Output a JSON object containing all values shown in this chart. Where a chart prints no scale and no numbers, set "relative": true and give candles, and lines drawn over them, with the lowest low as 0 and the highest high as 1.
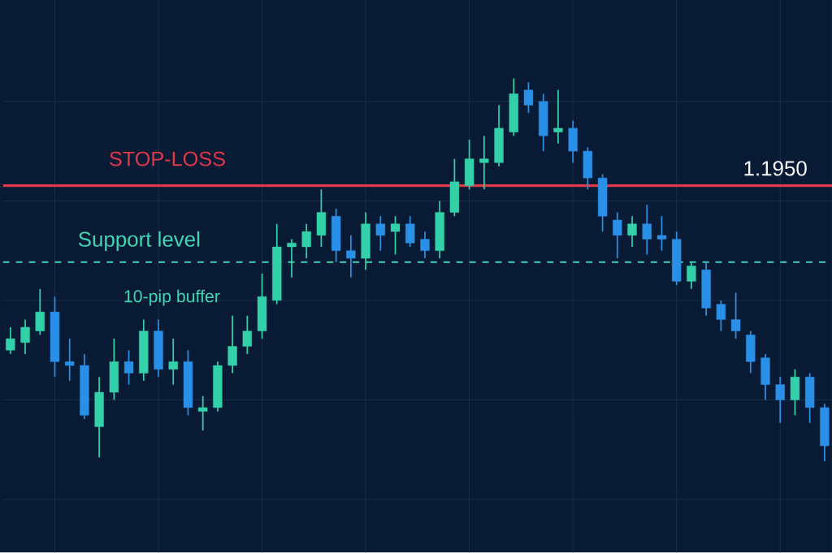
{
  "chart_data": {
    "type": "candlestick",
    "relative": true,
    "grid": true,
    "categories": [
      null,
      null,
      null,
      null,
      null,
      null,
      null,
      null,
      null,
      null,
      null,
      null,
      null,
      null,
      null,
      null,
      null,
      null,
      null,
      null,
      null,
      null,
      null,
      null,
      null,
      null,
      null,
      null,
      null,
      null,
      null,
      null,
      null,
      null,
      null,
      null,
      null,
      null,
      null,
      null,
      null,
      null,
      null,
      null,
      null,
      null,
      null,
      null,
      null,
      null,
      null,
      null,
      null,
      null,
      null,
      null
    ],
    "ohlc": [
      [
        0.29,
        0.35,
        0.28,
        0.32
      ],
      [
        0.31,
        0.37,
        0.28,
        0.35
      ],
      [
        0.34,
        0.45,
        0.33,
        0.39
      ],
      [
        0.39,
        0.43,
        0.22,
        0.26
      ],
      [
        0.26,
        0.32,
        0.21,
        0.25
      ],
      [
        0.25,
        0.28,
        0.11,
        0.12
      ],
      [
        0.09,
        0.22,
        0.01,
        0.18
      ],
      [
        0.18,
        0.32,
        0.16,
        0.26
      ],
      [
        0.26,
        0.29,
        0.2,
        0.23
      ],
      [
        0.23,
        0.37,
        0.21,
        0.34
      ],
      [
        0.34,
        0.37,
        0.22,
        0.24
      ],
      [
        0.24,
        0.32,
        0.2,
        0.26
      ],
      [
        0.26,
        0.29,
        0.12,
        0.14
      ],
      [
        0.13,
        0.17,
        0.08,
        0.14
      ],
      [
        0.14,
        0.26,
        0.13,
        0.25
      ],
      [
        0.25,
        0.38,
        0.23,
        0.3
      ],
      [
        0.3,
        0.38,
        0.28,
        0.34
      ],
      [
        0.34,
        0.49,
        0.32,
        0.43
      ],
      [
        0.42,
        0.62,
        0.41,
        0.56
      ],
      [
        0.56,
        0.58,
        0.48,
        0.57
      ],
      [
        0.56,
        0.62,
        0.53,
        0.6
      ],
      [
        0.59,
        0.71,
        0.56,
        0.65
      ],
      [
        0.64,
        0.66,
        0.52,
        0.55
      ],
      [
        0.55,
        0.59,
        0.48,
        0.53
      ],
      [
        0.53,
        0.65,
        0.5,
        0.62
      ],
      [
        0.62,
        0.64,
        0.55,
        0.59
      ],
      [
        0.6,
        0.64,
        0.54,
        0.62
      ],
      [
        0.62,
        0.64,
        0.56,
        0.57
      ],
      [
        0.58,
        0.6,
        0.53,
        0.55
      ],
      [
        0.55,
        0.68,
        0.53,
        0.65
      ],
      [
        0.65,
        0.79,
        0.64,
        0.73
      ],
      [
        0.72,
        0.84,
        0.71,
        0.79
      ],
      [
        0.78,
        0.85,
        0.71,
        0.79
      ],
      [
        0.78,
        0.93,
        0.77,
        0.87
      ],
      [
        0.86,
        1,
        0.85,
        0.96
      ],
      [
        0.97,
        0.99,
        0.91,
        0.93
      ],
      [
        0.94,
        0.96,
        0.81,
        0.85
      ],
      [
        0.86,
        0.97,
        0.83,
        0.87
      ],
      [
        0.87,
        0.89,
        0.78,
        0.81
      ],
      [
        0.81,
        0.82,
        0.71,
        0.74
      ],
      [
        0.74,
        0.75,
        0.6,
        0.64
      ],
      [
        0.63,
        0.65,
        0.53,
        0.59
      ],
      [
        0.59,
        0.64,
        0.56,
        0.62
      ],
      [
        0.62,
        0.67,
        0.54,
        0.58
      ],
      [
        0.59,
        0.64,
        0.55,
        0.58
      ],
      [
        0.58,
        0.6,
        0.46,
        0.47
      ],
      [
        0.47,
        0.52,
        0.45,
        0.51
      ],
      [
        0.5,
        0.52,
        0.38,
        0.4
      ],
      [
        0.41,
        0.42,
        0.34,
        0.37
      ],
      [
        0.37,
        0.44,
        0.32,
        0.34
      ],
      [
        0.33,
        0.34,
        0.23,
        0.26
      ],
      [
        0.27,
        0.28,
        0.16,
        0.2
      ],
      [
        0.2,
        0.22,
        0.1,
        0.16
      ],
      [
        0.16,
        0.24,
        0.12,
        0.22
      ],
      [
        0.22,
        0.23,
        0.1,
        0.14
      ],
      [
        0.14,
        0.15,
        0,
        0.04
      ]
    ],
    "colors": [
      "#33d1aa",
      "#33d1aa",
      "#33d1aa",
      "#2a8fe6",
      "#2a8fe6",
      "#2a8fe6",
      "#33d1aa",
      "#33d1aa",
      "#2a8fe6",
      "#33d1aa",
      "#2a8fe6",
      "#33d1aa",
      "#2a8fe6",
      "#33d1aa",
      "#33d1aa",
      "#33d1aa",
      "#33d1aa",
      "#33d1aa",
      "#33d1aa",
      "#33d1aa",
      "#33d1aa",
      "#33d1aa",
      "#2a8fe6",
      "#2a8fe6",
      "#33d1aa",
      "#2a8fe6",
      "#33d1aa",
      "#2a8fe6",
      "#2a8fe6",
      "#33d1aa",
      "#33d1aa",
      "#33d1aa",
      "#33d1aa",
      "#33d1aa",
      "#33d1aa",
      "#2a8fe6",
      "#2a8fe6",
      "#33d1aa",
      "#2a8fe6",
      "#2a8fe6",
      "#2a8fe6",
      "#2a8fe6",
      "#33d1aa",
      "#2a8fe6",
      "#2a8fe6",
      "#2a8fe6",
      "#33d1aa",
      "#2a8fe6",
      "#2a8fe6",
      "#2a8fe6",
      "#2a8fe6",
      "#2a8fe6",
      "#2a8fe6",
      "#33d1aa",
      "#2a8fe6",
      "#2a8fe6"
    ],
    "ref_lines": [
      {
        "axis": "y",
        "value": 0.72,
        "label": "STOP-LOSS",
        "color": "#e0394a",
        "line_style": "solid"
      },
      {
        "axis": "y",
        "value": 0.52,
        "label": "Support level",
        "color": "#3fd6b4",
        "line_style": "dashed"
      }
    ],
    "annotations": [
      {
        "text": "1.1950",
        "y": 0.72
      },
      "10-pip buffer"
    ]
  }
}
